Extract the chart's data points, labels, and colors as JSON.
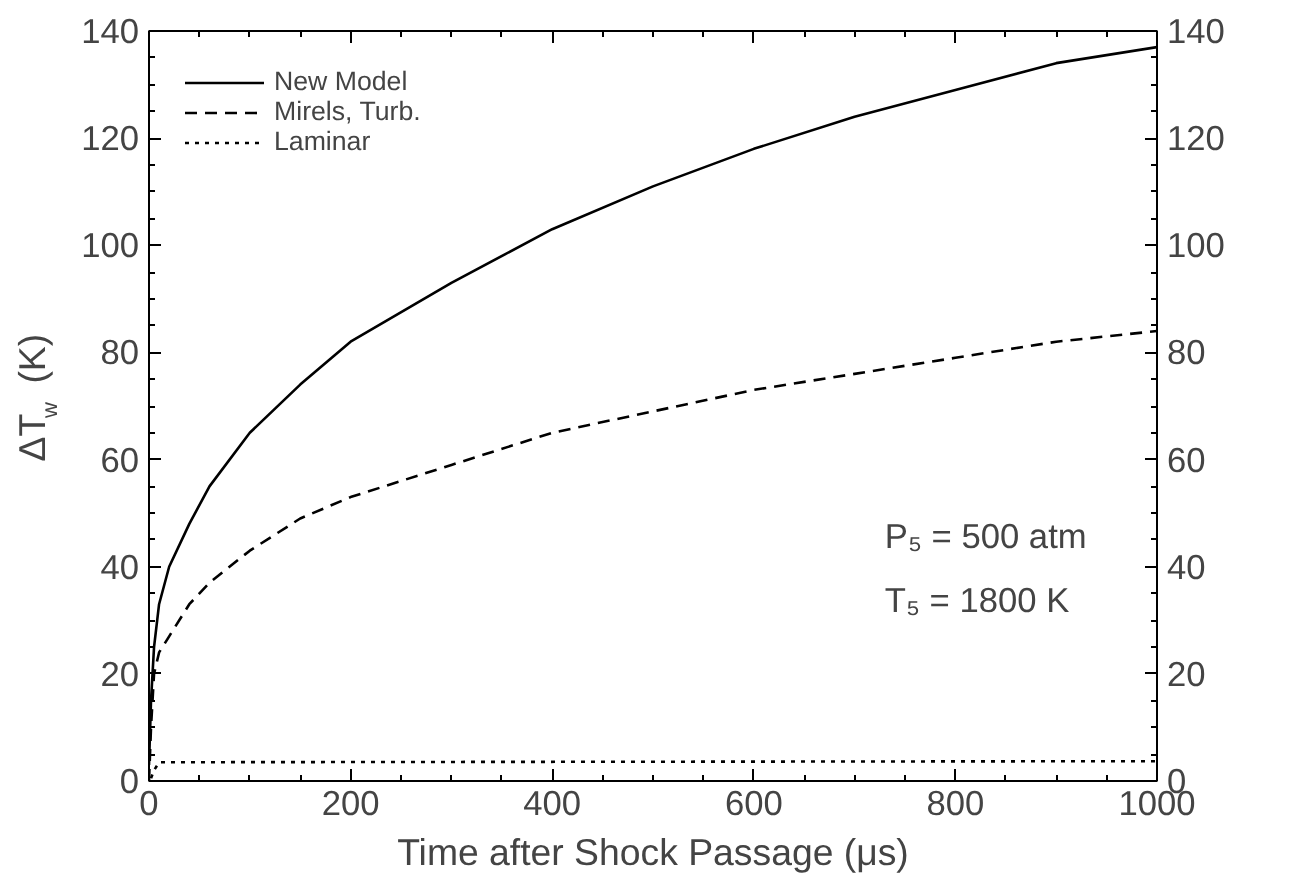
{
  "chart_data": {
    "type": "line",
    "xlabel": "Time after Shock Passage (μs)",
    "ylabel": "ΔT$_{w}$ (K)",
    "xlim": [
      0,
      1000
    ],
    "xticks": [
      0,
      200,
      400,
      600,
      800,
      1000
    ],
    "ylim": [
      0,
      140
    ],
    "yticks": [
      0,
      20,
      40,
      60,
      80,
      100,
      120,
      140
    ],
    "y2lim": [
      0,
      140
    ],
    "y2ticks": [
      0,
      20,
      40,
      60,
      80,
      100,
      120,
      140
    ],
    "legend": "top left",
    "grid": false,
    "annotations": [
      "P₅ = 500 atm",
      "T₅ = 1800 K"
    ],
    "series": [
      {
        "name": "New Model",
        "color": "#000000",
        "line_style": "solid",
        "x": [
          0,
          2,
          5,
          10,
          20,
          40,
          60,
          100,
          150,
          200,
          300,
          400,
          500,
          600,
          700,
          800,
          900,
          1000
        ],
        "values": [
          3,
          15,
          25,
          33,
          40,
          48,
          55,
          65,
          74,
          82,
          93,
          103,
          111,
          118,
          124,
          129,
          134,
          137
        ]
      },
      {
        "name": "Mirels, Turb.",
        "color": "#000000",
        "line_style": "dashed",
        "x": [
          0,
          2,
          5,
          10,
          20,
          40,
          60,
          100,
          150,
          200,
          300,
          400,
          500,
          600,
          700,
          800,
          900,
          1000
        ],
        "values": [
          0,
          10,
          20,
          24,
          27,
          33,
          37,
          43,
          49,
          53,
          59,
          65,
          69,
          73,
          76,
          79,
          82,
          84
        ]
      },
      {
        "name": "Laminar",
        "color": "#000000",
        "line_style": "dotted",
        "x": [
          2,
          5,
          10,
          1000
        ],
        "values": [
          0.5,
          2,
          3.5,
          3.7
        ]
      }
    ]
  }
}
